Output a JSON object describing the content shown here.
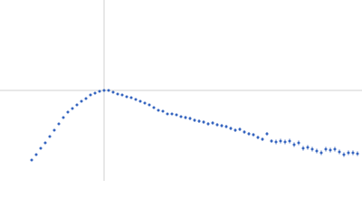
{
  "chart_data": {
    "type": "scatter",
    "color": "#3766c0",
    "error_color": "#9fb3dc",
    "ref_color": "#d0d0d0",
    "xlim": [
      0,
      400
    ],
    "ylim": [
      0,
      200
    ],
    "ref_x": [
      115
    ],
    "ref_y": [
      100
    ],
    "x": [
      35,
      40,
      45,
      50,
      55,
      60,
      65,
      70,
      75,
      80,
      85,
      90,
      95,
      100,
      105,
      110,
      115,
      120,
      125,
      130,
      135,
      140,
      145,
      150,
      155,
      160,
      165,
      170,
      175,
      180,
      185,
      190,
      195,
      200,
      205,
      210,
      215,
      220,
      225,
      230,
      235,
      240,
      245,
      250,
      255,
      260,
      265,
      270,
      275,
      280,
      285,
      290,
      295,
      300,
      305,
      310,
      315,
      320,
      325,
      330,
      335,
      340,
      345,
      350,
      355,
      360,
      365,
      370,
      375,
      380,
      385,
      390,
      395
    ],
    "values": [
      23,
      29,
      36,
      42,
      49,
      56,
      63,
      70,
      76,
      80,
      84,
      88,
      91,
      95,
      97,
      99,
      100,
      100,
      98,
      96,
      95,
      93,
      92,
      90,
      88,
      86,
      84,
      81,
      78,
      77,
      74,
      74,
      73,
      71,
      70,
      69,
      67,
      66,
      65,
      63,
      64,
      62,
      61,
      60,
      58,
      56,
      57,
      54,
      52,
      51,
      48,
      46,
      52,
      44,
      43,
      44,
      43,
      44,
      40,
      42,
      36,
      37,
      35,
      33,
      31,
      35,
      34,
      35,
      32,
      29,
      31,
      31,
      30
    ],
    "errors": [
      1,
      1,
      1,
      1,
      1,
      1,
      1,
      1,
      1,
      1,
      1,
      1,
      1,
      1,
      1,
      1,
      1,
      1,
      1,
      1,
      1,
      1,
      1,
      1,
      1,
      1,
      1,
      1,
      1,
      1,
      1,
      1,
      1,
      1,
      2,
      2,
      2,
      2,
      2,
      2,
      2,
      2,
      2,
      2,
      2,
      2,
      2,
      2,
      2,
      2,
      2,
      2,
      2,
      2,
      3,
      3,
      3,
      3,
      3,
      3,
      3,
      3,
      3,
      3,
      3,
      3,
      3,
      3,
      3,
      3,
      3,
      3,
      3
    ]
  }
}
